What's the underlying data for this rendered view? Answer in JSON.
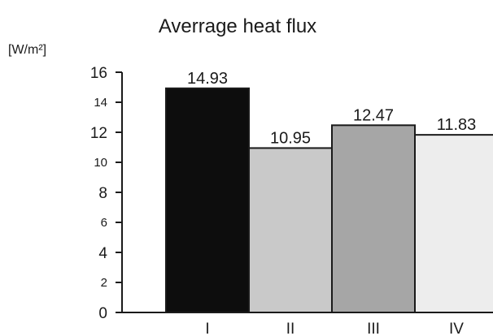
{
  "chart_data": {
    "type": "bar",
    "title": "Averrage heat flux",
    "unit_label": "[W/m²]",
    "categories": [
      "I",
      "II",
      "III",
      "IV"
    ],
    "values": [
      14.93,
      10.95,
      12.47,
      11.83
    ],
    "value_labels": [
      "14.93",
      "10.95",
      "12.47",
      "11.83"
    ],
    "ylim": [
      0,
      16
    ],
    "yticks": [
      "0",
      "2",
      "4",
      "6",
      "8",
      "10",
      "12",
      "14",
      "16"
    ],
    "grid": false,
    "bar_colors": [
      "#0d0d0d",
      "#c9c9c9",
      "#a6a6a6",
      "#ededed"
    ],
    "bar_edge_color": "#1a1a1a"
  }
}
